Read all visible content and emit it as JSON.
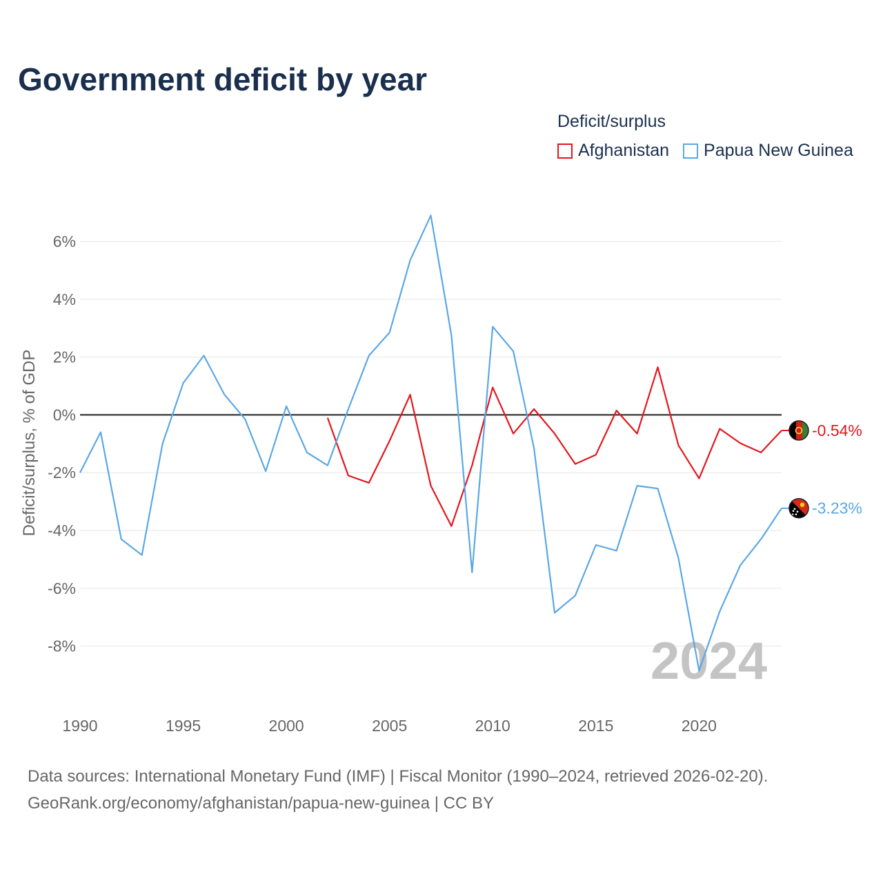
{
  "title": "Government deficit by year",
  "legend": {
    "title": "Deficit/surplus",
    "items": [
      {
        "label": "Afghanistan",
        "color": "#e4151b"
      },
      {
        "label": "Papua New Guinea",
        "color": "#5aa7e6"
      }
    ]
  },
  "year_watermark": "2024",
  "footer": {
    "sources": "Data sources: International Monetary Fund (IMF) | Fiscal Monitor (1990–2024, retrieved 2026-02-20).",
    "link": "GeoRank.org/economy/afghanistan/papua-new-guinea | CC BY"
  },
  "chart_data": {
    "type": "line",
    "title": "Government deficit by year",
    "xlabel": "",
    "ylabel": "Deficit/surplus, % of GDP",
    "xlim": [
      1990,
      2024
    ],
    "ylim": [
      -10,
      7
    ],
    "x_ticks": [
      1990,
      1995,
      2000,
      2005,
      2010,
      2015,
      2020
    ],
    "x_tick_labels": [
      "1990",
      "1995",
      "2000",
      "2005",
      "2010",
      "2015",
      "2020"
    ],
    "y_ticks": [
      6,
      4,
      2,
      0,
      -2,
      -4,
      -6,
      -8
    ],
    "y_tick_labels": [
      "6%",
      "4%",
      "2%",
      "0%",
      "-2%",
      "-4%",
      "-6%",
      "-8%"
    ],
    "series": [
      {
        "name": "Afghanistan",
        "color": "#e4151b",
        "x": [
          2002,
          2003,
          2004,
          2005,
          2006,
          2007,
          2008,
          2009,
          2010,
          2011,
          2012,
          2013,
          2014,
          2015,
          2016,
          2017,
          2018,
          2019,
          2020,
          2021,
          2022,
          2023,
          2024
        ],
        "values": [
          -0.1,
          -2.1,
          -2.35,
          -0.9,
          0.7,
          -2.45,
          -3.85,
          -1.75,
          0.95,
          -0.65,
          0.2,
          -0.65,
          -1.7,
          -1.38,
          0.15,
          -0.65,
          1.65,
          -1.05,
          -2.2,
          -0.48,
          -0.98,
          -1.3,
          -0.54
        ],
        "end_label": "-0.54%"
      },
      {
        "name": "Papua New Guinea",
        "color": "#5aa7e6",
        "x": [
          1990,
          1991,
          1992,
          1993,
          1994,
          1995,
          1996,
          1997,
          1998,
          1999,
          2000,
          2001,
          2002,
          2003,
          2004,
          2005,
          2006,
          2007,
          2008,
          2009,
          2010,
          2011,
          2012,
          2013,
          2014,
          2015,
          2016,
          2017,
          2018,
          2019,
          2020,
          2021,
          2022,
          2023,
          2024
        ],
        "values": [
          -2.0,
          -0.6,
          -4.3,
          -4.85,
          -1.0,
          1.1,
          2.05,
          0.7,
          -0.15,
          -1.95,
          0.3,
          -1.3,
          -1.75,
          0.2,
          2.05,
          2.85,
          5.35,
          6.9,
          2.75,
          -5.45,
          3.05,
          2.2,
          -1.15,
          -6.85,
          -6.25,
          -4.5,
          -4.7,
          -2.45,
          -2.55,
          -4.95,
          -8.85,
          -6.8,
          -5.2,
          -4.3,
          -3.23
        ],
        "end_label": "-3.23%"
      }
    ]
  }
}
